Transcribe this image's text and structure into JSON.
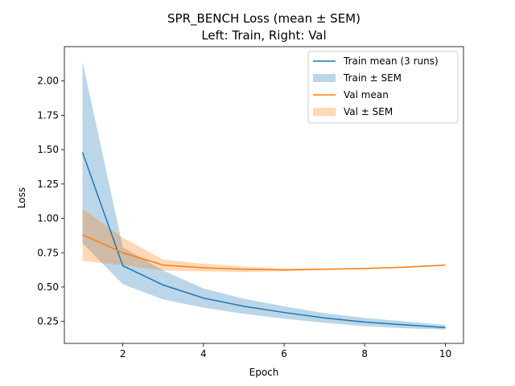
{
  "chart_data": {
    "type": "line",
    "title": "SPR_BENCH Loss (mean ± SEM)",
    "subtitle": "Left: Train, Right: Val",
    "xlabel": "Epoch",
    "ylabel": "Loss",
    "xlim": [
      0.55,
      10.45
    ],
    "ylim": [
      0.09,
      2.25
    ],
    "xticks": [
      2,
      4,
      6,
      8,
      10
    ],
    "yticks": [
      0.25,
      0.5,
      0.75,
      1.0,
      1.25,
      1.5,
      1.75,
      2.0
    ],
    "ytick_labels": [
      "0.25",
      "0.50",
      "0.75",
      "1.00",
      "1.25",
      "1.50",
      "1.75",
      "2.00"
    ],
    "grid": false,
    "legend_position": "top-right",
    "x": [
      1,
      2,
      3,
      4,
      5,
      6,
      7,
      8,
      9,
      10
    ],
    "series": [
      {
        "name": "Train mean (3 runs)",
        "band_name": "Train ± SEM",
        "color": "#1f77b4",
        "band_color": "#1f77b4",
        "mean": [
          1.48,
          0.655,
          0.515,
          0.42,
          0.36,
          0.315,
          0.275,
          0.245,
          0.225,
          0.205
        ],
        "lower": [
          0.82,
          0.52,
          0.41,
          0.35,
          0.305,
          0.27,
          0.24,
          0.215,
          0.2,
          0.19
        ],
        "upper": [
          2.14,
          0.79,
          0.62,
          0.49,
          0.415,
          0.36,
          0.31,
          0.275,
          0.25,
          0.225
        ]
      },
      {
        "name": "Val mean",
        "band_name": "Val ± SEM",
        "color": "#ff7f0e",
        "band_color": "#ff7f0e",
        "mean": [
          0.88,
          0.75,
          0.66,
          0.64,
          0.63,
          0.625,
          0.63,
          0.635,
          0.645,
          0.66
        ],
        "lower": [
          0.69,
          0.66,
          0.62,
          0.615,
          0.61,
          0.615,
          0.625,
          0.63,
          0.64,
          0.655
        ],
        "upper": [
          1.07,
          0.86,
          0.7,
          0.67,
          0.65,
          0.635,
          0.635,
          0.64,
          0.65,
          0.665
        ]
      }
    ]
  }
}
